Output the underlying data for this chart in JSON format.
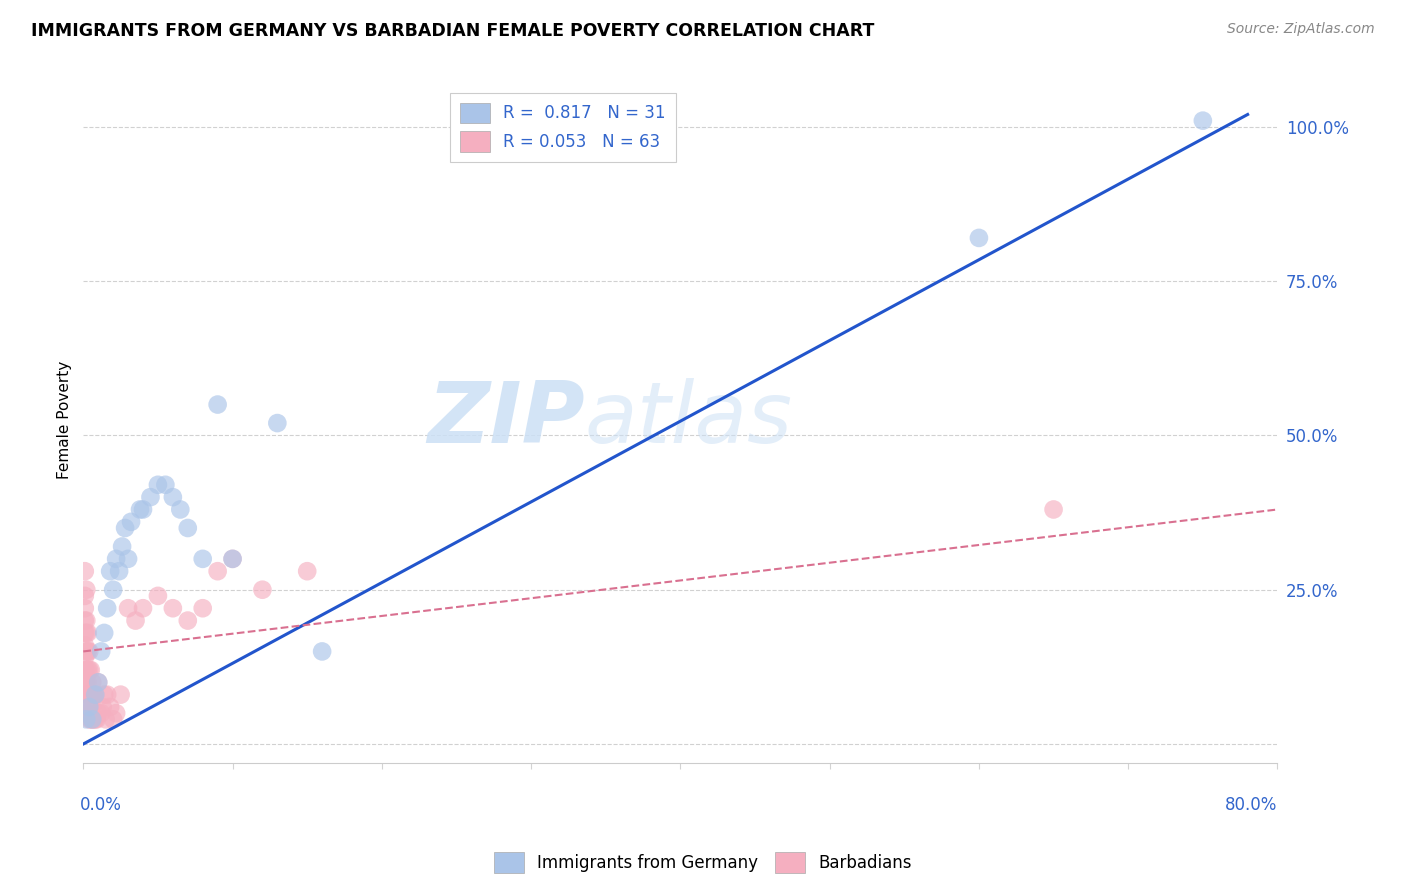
{
  "title": "IMMIGRANTS FROM GERMANY VS BARBADIAN FEMALE POVERTY CORRELATION CHART",
  "source": "Source: ZipAtlas.com",
  "ylabel": "Female Poverty",
  "xlim": [
    0.0,
    0.8
  ],
  "ylim": [
    -0.03,
    1.08
  ],
  "yticks": [
    0.0,
    0.25,
    0.5,
    0.75,
    1.0
  ],
  "ytick_labels": [
    "",
    "25.0%",
    "50.0%",
    "75.0%",
    "100.0%"
  ],
  "xticks": [
    0.0,
    0.1,
    0.2,
    0.3,
    0.4,
    0.5,
    0.6,
    0.7,
    0.8
  ],
  "color_blue": "#aac4e8",
  "color_pink": "#f5afc0",
  "line_blue": "#2255cc",
  "line_pink": "#d97090",
  "watermark_zip": "ZIP",
  "watermark_atlas": "atlas",
  "germany_x": [
    0.002,
    0.004,
    0.006,
    0.008,
    0.01,
    0.012,
    0.014,
    0.016,
    0.018,
    0.02,
    0.022,
    0.024,
    0.026,
    0.028,
    0.03,
    0.032,
    0.038,
    0.04,
    0.045,
    0.05,
    0.055,
    0.06,
    0.065,
    0.07,
    0.08,
    0.09,
    0.1,
    0.13,
    0.16,
    0.6,
    0.75
  ],
  "germany_y": [
    0.04,
    0.06,
    0.04,
    0.08,
    0.1,
    0.15,
    0.18,
    0.22,
    0.28,
    0.25,
    0.3,
    0.28,
    0.32,
    0.35,
    0.3,
    0.36,
    0.38,
    0.38,
    0.4,
    0.42,
    0.42,
    0.4,
    0.38,
    0.35,
    0.3,
    0.55,
    0.3,
    0.52,
    0.15,
    0.82,
    1.01
  ],
  "germany_line_x": [
    0.0,
    0.78
  ],
  "germany_line_y": [
    0.0,
    1.02
  ],
  "barbadian_x": [
    0.001,
    0.001,
    0.001,
    0.001,
    0.001,
    0.001,
    0.001,
    0.001,
    0.001,
    0.002,
    0.002,
    0.002,
    0.002,
    0.002,
    0.002,
    0.002,
    0.002,
    0.003,
    0.003,
    0.003,
    0.003,
    0.003,
    0.003,
    0.004,
    0.004,
    0.004,
    0.004,
    0.004,
    0.005,
    0.005,
    0.005,
    0.005,
    0.006,
    0.006,
    0.006,
    0.007,
    0.007,
    0.008,
    0.008,
    0.009,
    0.01,
    0.01,
    0.012,
    0.013,
    0.014,
    0.015,
    0.016,
    0.018,
    0.02,
    0.022,
    0.025,
    0.03,
    0.035,
    0.04,
    0.05,
    0.06,
    0.07,
    0.08,
    0.09,
    0.1,
    0.12,
    0.15,
    0.65
  ],
  "barbadian_y": [
    0.1,
    0.12,
    0.14,
    0.16,
    0.18,
    0.2,
    0.22,
    0.24,
    0.28,
    0.05,
    0.08,
    0.1,
    0.12,
    0.15,
    0.18,
    0.2,
    0.25,
    0.05,
    0.08,
    0.1,
    0.12,
    0.15,
    0.18,
    0.04,
    0.06,
    0.08,
    0.12,
    0.15,
    0.04,
    0.06,
    0.08,
    0.12,
    0.04,
    0.06,
    0.1,
    0.04,
    0.08,
    0.04,
    0.08,
    0.04,
    0.05,
    0.1,
    0.05,
    0.06,
    0.08,
    0.04,
    0.08,
    0.06,
    0.04,
    0.05,
    0.08,
    0.22,
    0.2,
    0.22,
    0.24,
    0.22,
    0.2,
    0.22,
    0.28,
    0.3,
    0.25,
    0.28,
    0.38
  ],
  "barbadian_line_x": [
    0.0,
    0.8
  ],
  "barbadian_line_y": [
    0.15,
    0.38
  ]
}
